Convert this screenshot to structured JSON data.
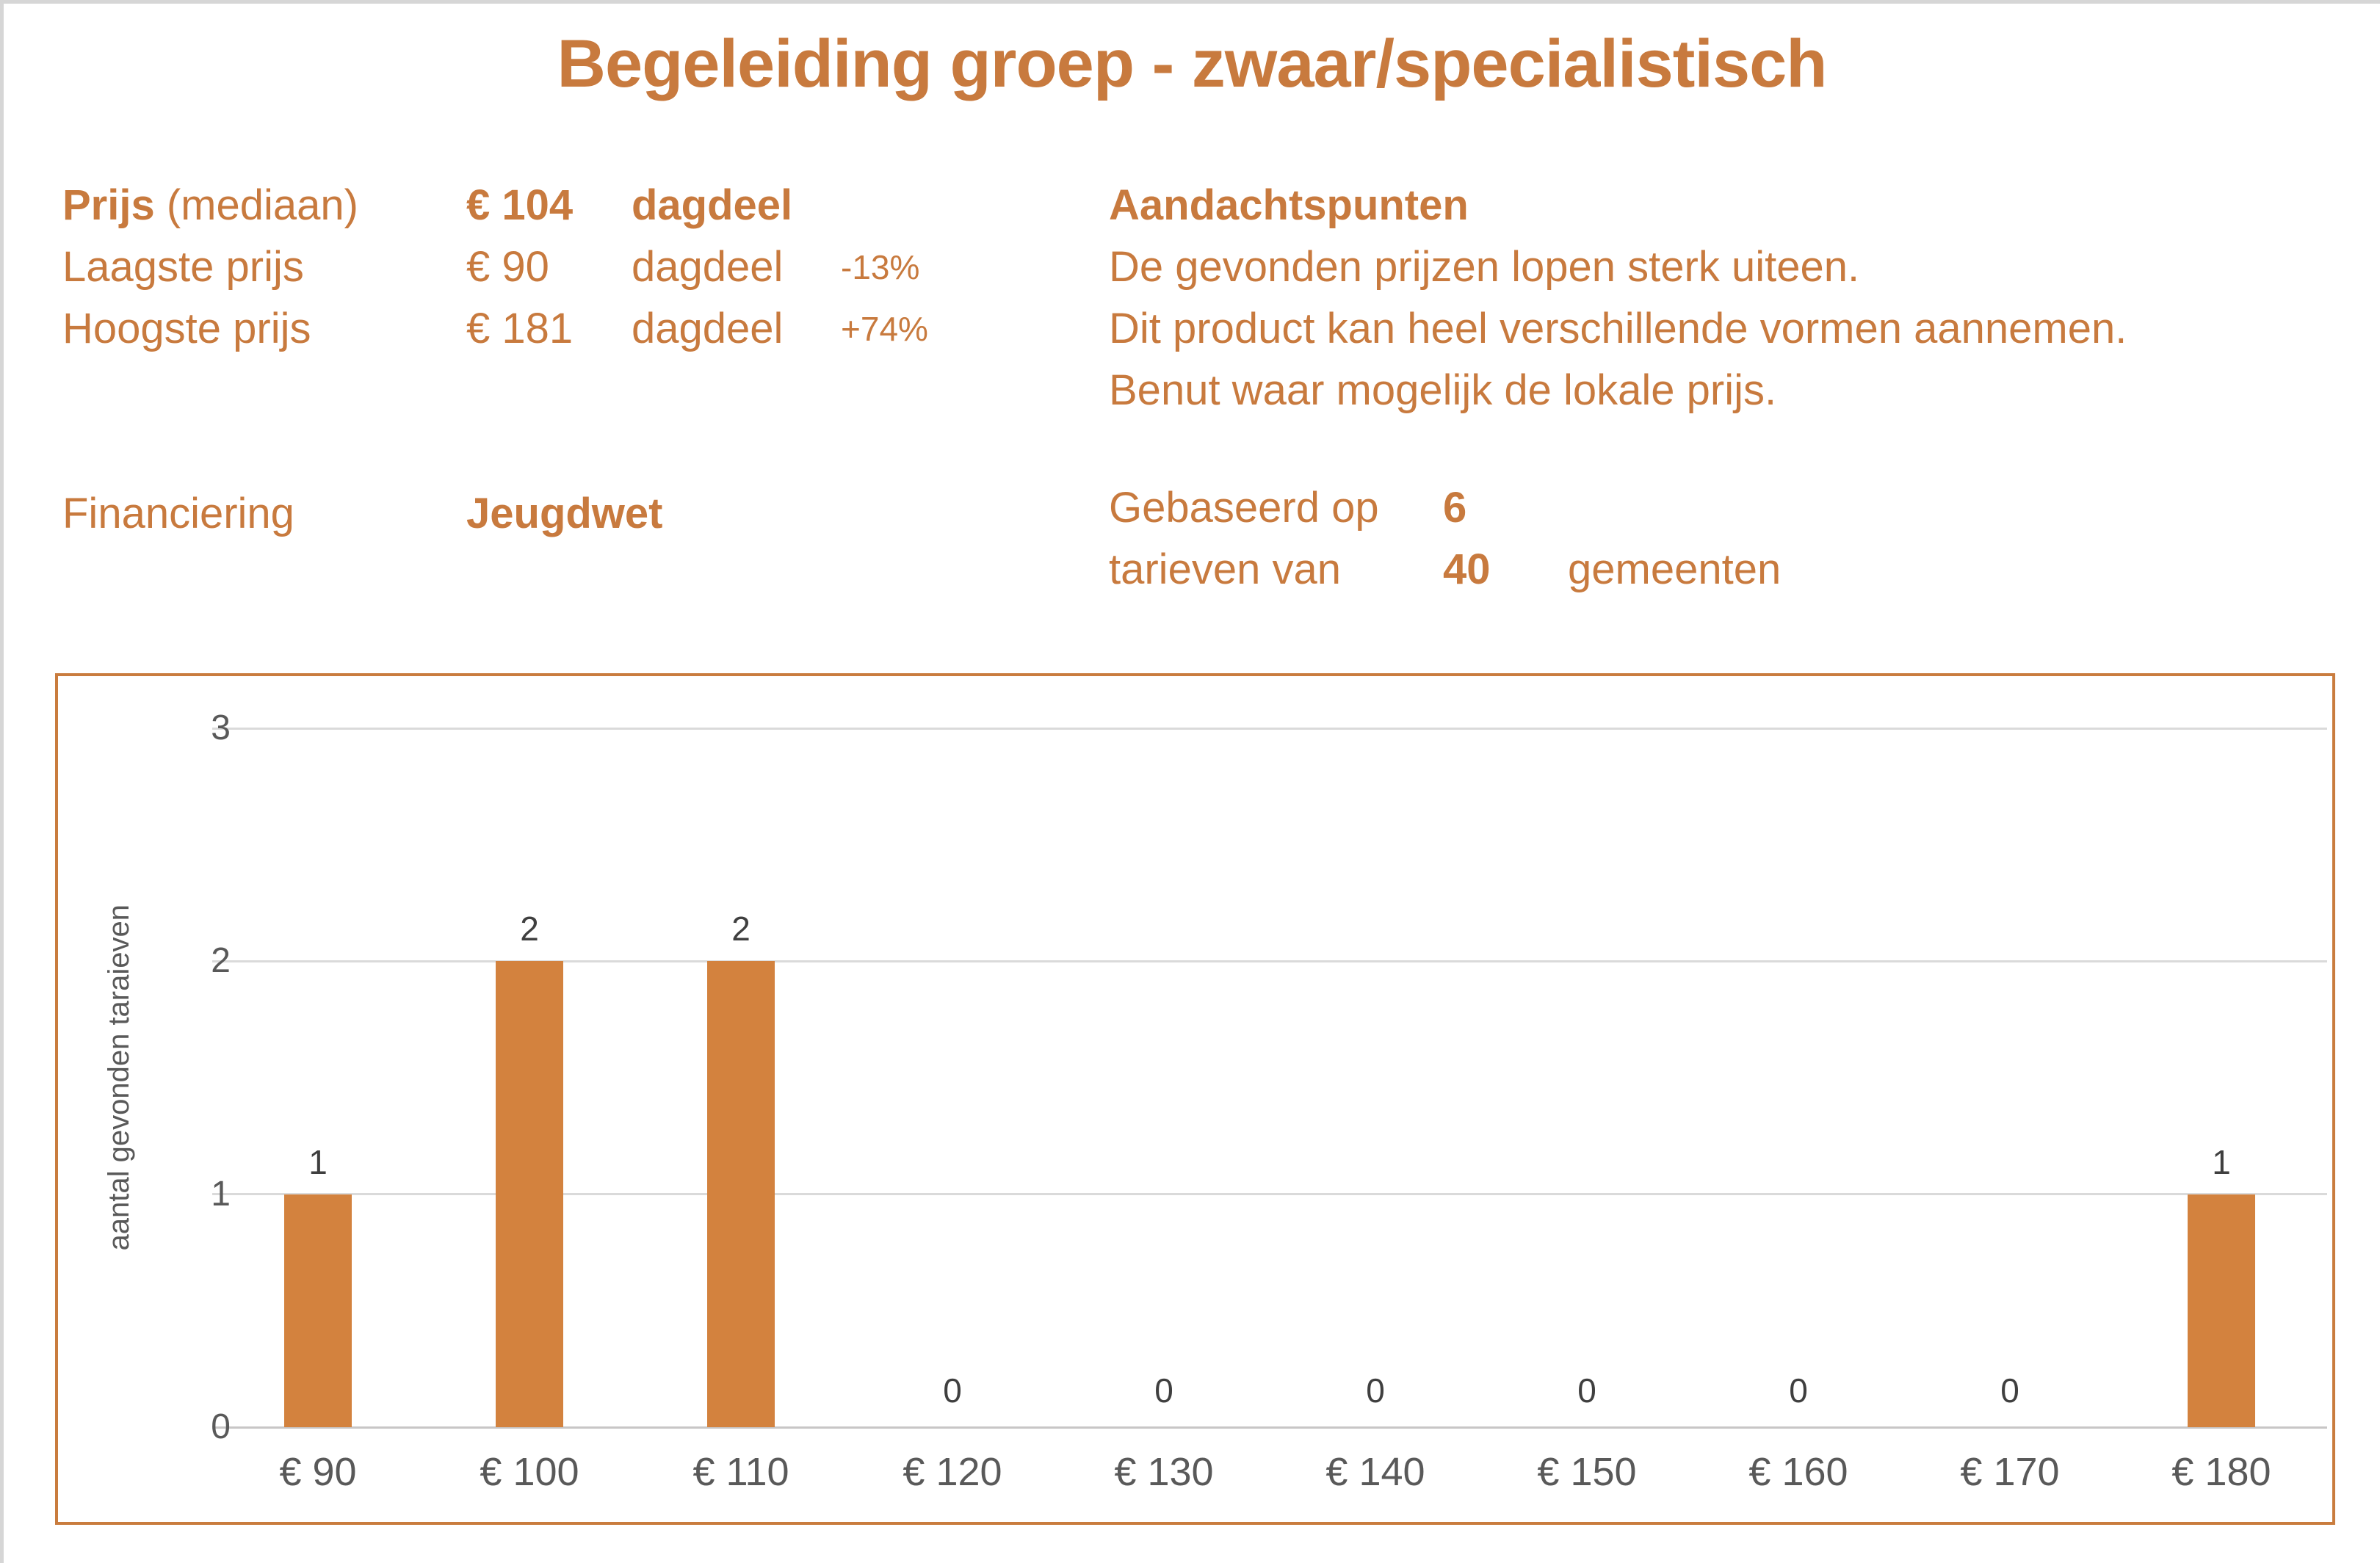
{
  "title": "Begeleiding groep - zwaar/specialistisch",
  "pricing": {
    "median": {
      "label_bold": "Prijs",
      "label_rest": " (mediaan)",
      "value": "€ 104",
      "unit": "dagdeel"
    },
    "lowest": {
      "label": "Laagste prijs",
      "value": "€ 90",
      "unit": "dagdeel",
      "pct": "-13%"
    },
    "highest": {
      "label": "Hoogste prijs",
      "value": "€ 181",
      "unit": "dagdeel",
      "pct": "+74%"
    },
    "financing": {
      "label": "Financiering",
      "value": "Jeugdwet"
    }
  },
  "notes": {
    "heading": "Aandachtspunten",
    "lines": [
      "De gevonden prijzen lopen sterk uiteen.",
      "Dit product kan heel verschillende vormen aannemen.",
      "Benut waar mogelijk de lokale prijs."
    ]
  },
  "basis": {
    "line1_prefix": "Gebaseerd op",
    "line1_value": "6",
    "line2_prefix": "tarieven van",
    "line2_value": "40",
    "line2_suffix": "gemeenten"
  },
  "colors": {
    "accent_orange": "#C87A3E",
    "bar_orange": "#D3823E",
    "frame_orange": "#C97C3E",
    "grid_gray": "#DADADA",
    "tick_gray": "#595959",
    "data_label_gray": "#3F3F3F"
  },
  "chart_data": {
    "type": "bar",
    "categories": [
      "€ 90",
      "€ 100",
      "€ 110",
      "€ 120",
      "€ 130",
      "€ 140",
      "€ 150",
      "€ 160",
      "€ 170",
      "€ 180"
    ],
    "values": [
      1,
      2,
      2,
      0,
      0,
      0,
      0,
      0,
      0,
      1
    ],
    "title": "",
    "xlabel": "",
    "ylabel": "aantal gevonden taraieven",
    "yticks": [
      0,
      1,
      2,
      3
    ],
    "ylim": [
      0,
      3
    ],
    "grid": true,
    "data_labels": true,
    "legend": false,
    "bar_color": "#D3823E"
  }
}
